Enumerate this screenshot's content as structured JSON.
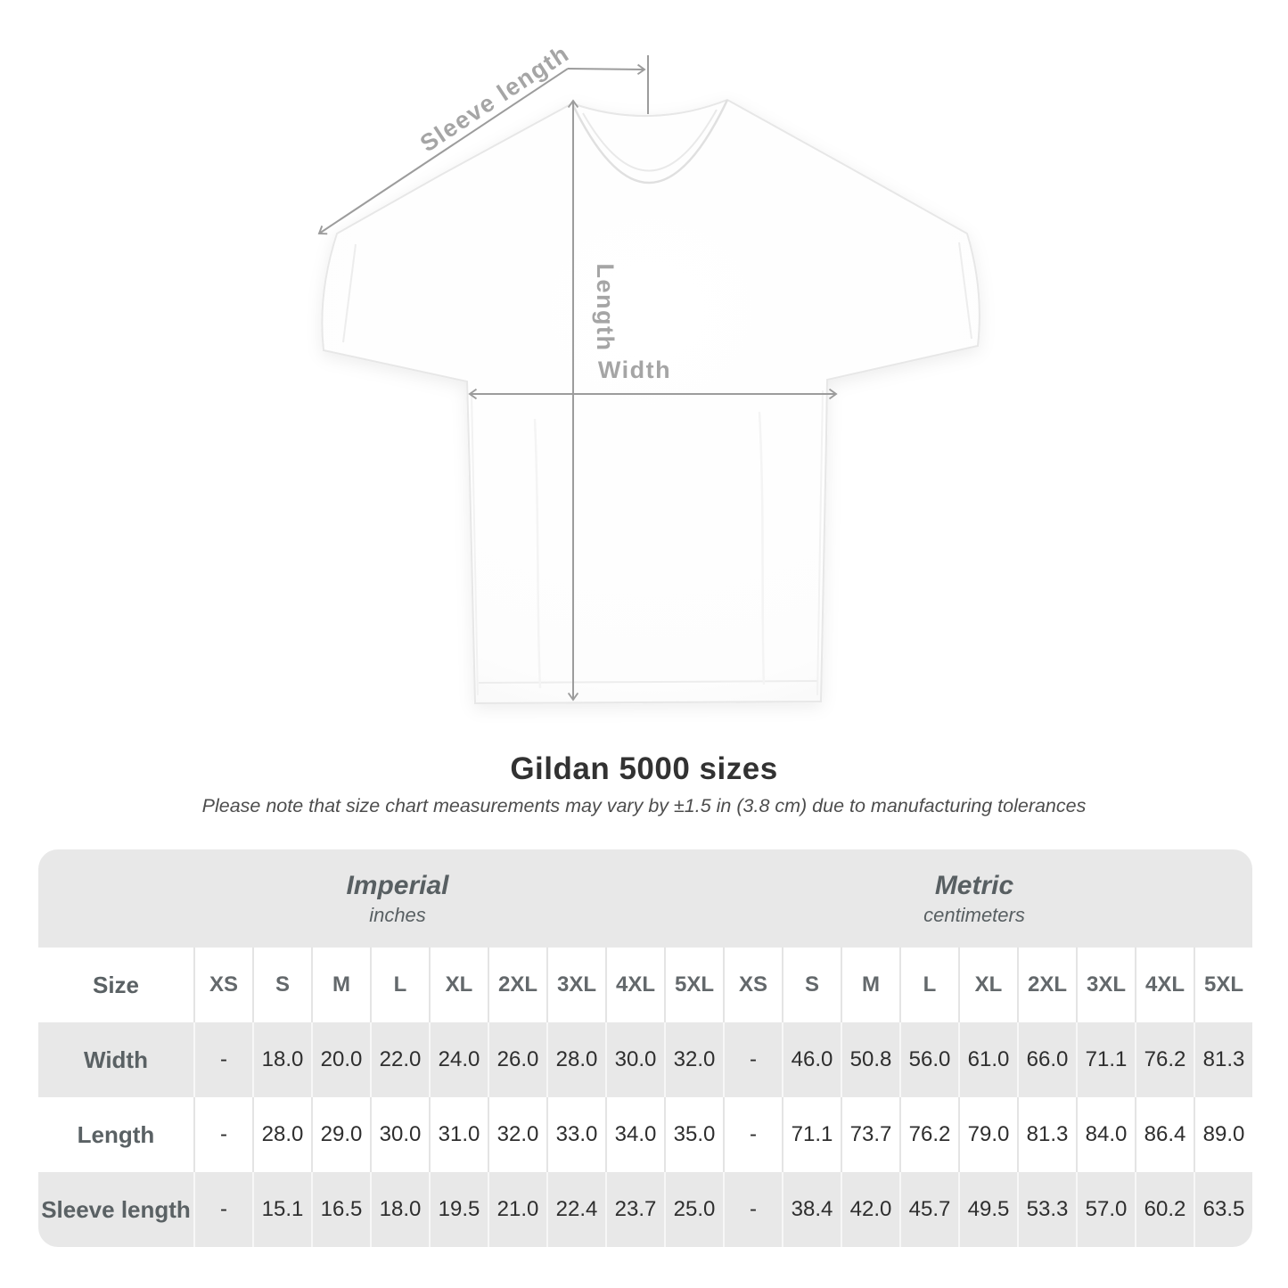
{
  "page": {
    "title": "Gildan 5000 sizes",
    "subtitle": "Please note that size chart measurements may vary by ±1.5 in (3.8 cm) due to manufacturing tolerances"
  },
  "diagram": {
    "sleeve_label": "Sleeve length",
    "length_label": "Length",
    "width_label": "Width",
    "arrow_color": "#9c9c9c",
    "label_color": "#a5a5a5"
  },
  "table": {
    "size_col_header": "Size",
    "unit_groups": [
      {
        "label": "Imperial",
        "sublabel": "inches"
      },
      {
        "label": "Metric",
        "sublabel": "centimeters"
      }
    ],
    "size_headers": [
      "XS",
      "S",
      "M",
      "L",
      "XL",
      "2XL",
      "3XL",
      "4XL",
      "5XL",
      "XS",
      "S",
      "M",
      "L",
      "XL",
      "2XL",
      "3XL",
      "4XL",
      "5XL"
    ],
    "rows": [
      {
        "label": "Width",
        "values": [
          "-",
          "18.0",
          "20.0",
          "22.0",
          "24.0",
          "26.0",
          "28.0",
          "30.0",
          "32.0",
          "-",
          "46.0",
          "50.8",
          "56.0",
          "61.0",
          "66.0",
          "71.1",
          "76.2",
          "81.3"
        ]
      },
      {
        "label": "Length",
        "values": [
          "-",
          "28.0",
          "29.0",
          "30.0",
          "31.0",
          "32.0",
          "33.0",
          "34.0",
          "35.0",
          "-",
          "71.1",
          "73.7",
          "76.2",
          "79.0",
          "81.3",
          "84.0",
          "86.4",
          "89.0"
        ]
      },
      {
        "label": "Sleeve length",
        "values": [
          "-",
          "15.1",
          "16.5",
          "18.0",
          "19.5",
          "21.0",
          "22.4",
          "23.7",
          "25.0",
          "-",
          "38.4",
          "42.0",
          "45.7",
          "49.5",
          "53.3",
          "57.0",
          "60.2",
          "63.5"
        ]
      }
    ],
    "colors": {
      "band": "#e8e8e8",
      "row_alt": "#e8e8e8",
      "row_white": "#ffffff"
    }
  }
}
